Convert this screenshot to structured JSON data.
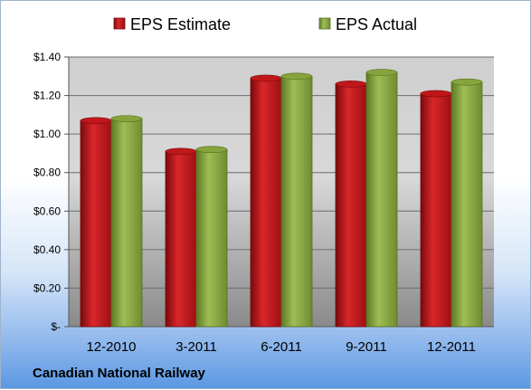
{
  "chart_data": {
    "type": "bar",
    "categories": [
      "12-2010",
      "3-2011",
      "6-2011",
      "9-2011",
      "12-2011"
    ],
    "series": [
      {
        "name": "EPS Estimate",
        "color": "#c0171b",
        "values": [
          1.07,
          0.91,
          1.29,
          1.26,
          1.21
        ]
      },
      {
        "name": "EPS Actual",
        "color": "#86a43c",
        "values": [
          1.08,
          0.92,
          1.3,
          1.32,
          1.27
        ]
      }
    ],
    "y_ticks": [
      {
        "value": 0,
        "label": "$-"
      },
      {
        "value": 0.2,
        "label": "$0.20"
      },
      {
        "value": 0.4,
        "label": "$0.40"
      },
      {
        "value": 0.6,
        "label": "$0.60"
      },
      {
        "value": 0.8,
        "label": "$0.80"
      },
      {
        "value": 1.0,
        "label": "$1.00"
      },
      {
        "value": 1.2,
        "label": "$1.20"
      },
      {
        "value": 1.4,
        "label": "$1.40"
      }
    ],
    "ylim": [
      0,
      1.4
    ],
    "grid": true,
    "legend_position": "top",
    "footer": "Canadian National Railway"
  }
}
